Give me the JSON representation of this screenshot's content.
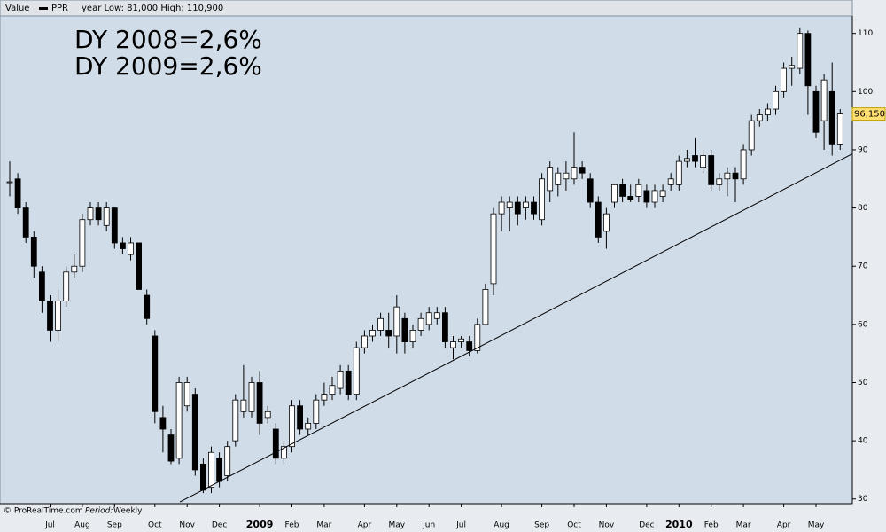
{
  "chart_data": {
    "type": "candlestick",
    "header_label": "Value",
    "legend": "PPR",
    "header_info": "year Low: 81,000 High: 110,900",
    "annotations": [
      "DY 2008=2,6%",
      "DY 2009=2,6%"
    ],
    "source": "© ProRealTime.com",
    "period_label": "Period:",
    "period": "Weekly",
    "color_up": "#ffffff",
    "color_down": "#000000",
    "background": "#d0dce8",
    "grid": false,
    "ylim": [
      29.2,
      113
    ],
    "yticks": [
      30,
      40,
      50,
      60,
      70,
      80,
      90,
      100,
      110
    ],
    "last_price": {
      "value": 96.15,
      "label": "96,150"
    },
    "trendline": {
      "x": [
        21.1,
        104.5
      ],
      "values": [
        29.5,
        89.3
      ]
    },
    "categories": [
      null,
      null,
      null,
      null,
      null,
      "Jul",
      null,
      null,
      null,
      "Aug",
      null,
      null,
      null,
      "Sep",
      null,
      null,
      null,
      null,
      "Oct",
      null,
      null,
      null,
      "Nov",
      null,
      null,
      null,
      "Dec",
      null,
      null,
      null,
      null,
      "2009",
      null,
      null,
      null,
      "Feb",
      null,
      null,
      null,
      "Mar",
      null,
      null,
      null,
      null,
      "Apr",
      null,
      null,
      null,
      "May",
      null,
      null,
      null,
      "Jun",
      null,
      null,
      null,
      "Jul",
      null,
      null,
      null,
      null,
      "Aug",
      null,
      null,
      null,
      null,
      "Sep",
      null,
      null,
      null,
      "Oct",
      null,
      null,
      null,
      "Nov",
      null,
      null,
      null,
      null,
      "Dec",
      null,
      null,
      null,
      "2010",
      null,
      null,
      null,
      "Feb",
      null,
      null,
      null,
      "Mar",
      null,
      null,
      null,
      null,
      "Apr",
      null,
      null,
      null,
      "May",
      null,
      null,
      null
    ],
    "open": [
      84.5,
      85,
      80,
      75,
      69,
      64,
      59,
      64,
      69,
      70,
      78,
      80,
      77,
      80,
      74,
      72,
      74,
      65,
      58,
      44,
      41,
      37,
      46,
      48,
      36,
      32,
      37,
      34,
      40,
      45,
      45,
      50,
      44,
      42,
      37,
      39,
      46,
      42,
      43,
      47,
      48,
      49,
      52,
      48,
      56,
      58,
      59,
      59,
      58,
      61,
      57,
      59,
      60,
      61,
      62,
      56,
      57,
      57,
      55.5,
      60,
      67,
      79,
      80,
      81,
      80,
      81,
      78,
      83,
      84,
      85,
      85,
      87,
      85,
      81,
      76,
      81,
      84,
      82,
      82,
      83,
      81,
      82,
      84,
      84,
      88,
      89,
      87,
      89,
      84,
      85,
      86,
      85,
      90,
      95,
      96,
      97,
      100,
      104,
      104,
      110,
      100,
      95,
      100,
      91
    ],
    "high": [
      88,
      86,
      81,
      76,
      70,
      65,
      66,
      70,
      72,
      79,
      81,
      81,
      81,
      80,
      75,
      75,
      74,
      66,
      59,
      46,
      42,
      51,
      51,
      49,
      37,
      39,
      38,
      40,
      48,
      53,
      51,
      52,
      46,
      43,
      40,
      47,
      47,
      44,
      48,
      50,
      51,
      53,
      53,
      57,
      59,
      60,
      62,
      62,
      65,
      62,
      60,
      62,
      63,
      63,
      63,
      58,
      58,
      58,
      61,
      67,
      80,
      82,
      82,
      82,
      82,
      82,
      86,
      88,
      87,
      88,
      93,
      88,
      86,
      82,
      80,
      84,
      85,
      84,
      85,
      84,
      84,
      84,
      86,
      89,
      90,
      92,
      90,
      90,
      86,
      87,
      87,
      91,
      96,
      97,
      98,
      101,
      105,
      106,
      110.9,
      110.5,
      101,
      103,
      105,
      97
    ],
    "low": [
      82,
      79,
      74,
      68,
      62,
      57,
      57,
      63,
      68,
      69,
      77,
      77,
      76,
      73,
      72,
      71,
      66,
      60,
      43,
      38,
      36,
      36,
      45,
      34,
      31,
      31,
      32,
      33,
      39,
      44,
      44,
      41,
      43,
      36,
      36,
      38,
      41,
      41,
      42,
      46,
      47,
      48,
      47,
      47,
      55,
      57,
      58,
      56,
      55,
      55,
      56,
      58,
      59,
      60,
      56,
      54,
      56,
      54.5,
      55,
      60,
      65,
      76,
      76,
      77,
      78,
      78,
      77,
      81,
      82,
      83,
      84,
      85,
      80,
      74,
      73,
      80,
      81,
      81,
      81,
      80,
      80,
      81,
      83,
      83,
      87,
      87,
      86,
      83,
      83,
      82,
      81,
      84,
      89,
      94,
      95,
      96,
      99,
      101,
      103,
      96,
      92,
      90,
      89,
      90
    ],
    "close": [
      84.5,
      80,
      75,
      70,
      64,
      59,
      64,
      69,
      70,
      78,
      80,
      78,
      80,
      74,
      73,
      74,
      66,
      61,
      45,
      42,
      36.5,
      50,
      50,
      35,
      31.5,
      38,
      33,
      39,
      47,
      47,
      50,
      43,
      45,
      37,
      39,
      46,
      42,
      43,
      47,
      48,
      49.5,
      52,
      48,
      56,
      58,
      59,
      61,
      58,
      63,
      57,
      59,
      61,
      62,
      62,
      57,
      57,
      57.5,
      55.5,
      60,
      66,
      79,
      81,
      81,
      79,
      81,
      79,
      85,
      87,
      86,
      86,
      87,
      86,
      81,
      75,
      79,
      84,
      82,
      81.5,
      84,
      81,
      83,
      83,
      85,
      88,
      88.5,
      88,
      89,
      84,
      85,
      86,
      85,
      90,
      95,
      96,
      97,
      100,
      104,
      104.5,
      110,
      101,
      93,
      102,
      91,
      96.15
    ]
  }
}
